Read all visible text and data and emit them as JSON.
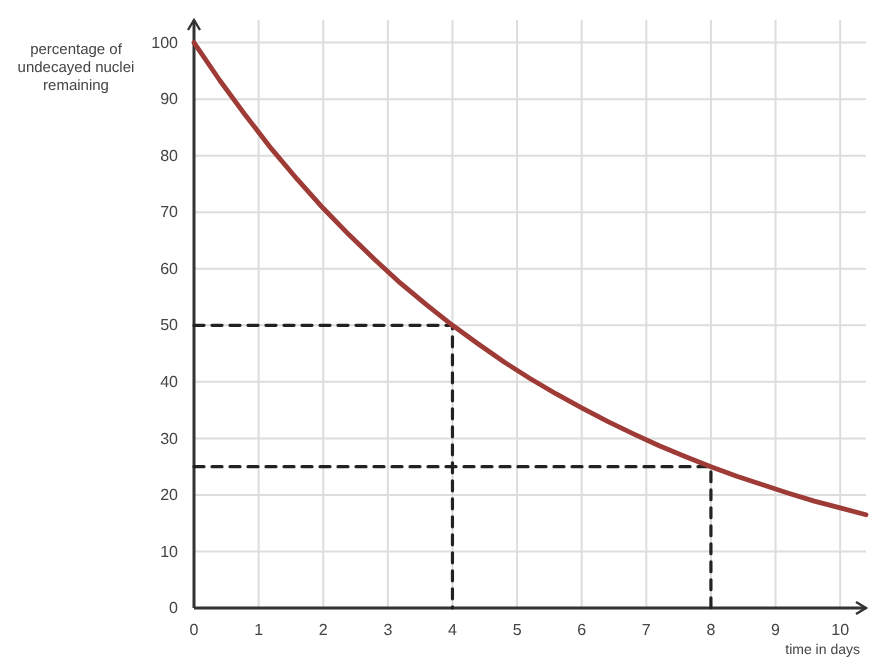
{
  "chart_data": {
    "type": "line",
    "xlabel": "time in days",
    "ylabel": "percentage of undecayed nuclei remaining",
    "xlim": [
      0,
      10.4
    ],
    "ylim": [
      0,
      104
    ],
    "xticks": [
      0,
      1,
      2,
      3,
      4,
      5,
      6,
      7,
      8,
      9,
      10
    ],
    "yticks": [
      0,
      10,
      20,
      30,
      40,
      50,
      60,
      70,
      80,
      90,
      100
    ],
    "grid": true,
    "marker": "none",
    "series": [
      {
        "color": "#9e3b36",
        "line_style": "solid",
        "x": [
          0,
          0.4,
          0.8,
          1.2,
          1.6,
          2,
          2.4,
          2.8,
          3.2,
          3.6,
          4,
          4.4,
          4.8,
          5.2,
          5.6,
          6,
          6.4,
          6.8,
          7.2,
          7.6,
          8,
          8.4,
          8.8,
          9.2,
          9.6,
          10,
          10.4
        ],
        "values": [
          100,
          93.3,
          87.1,
          81.2,
          75.8,
          70.7,
          66.0,
          61.6,
          57.4,
          53.6,
          50,
          46.7,
          43.5,
          40.6,
          37.9,
          35.4,
          33.0,
          30.8,
          28.7,
          26.8,
          25,
          23.3,
          21.8,
          20.3,
          18.9,
          17.7,
          16.5
        ]
      },
      {
        "color": "#222222",
        "line_style": "dashed",
        "x": [
          0,
          4,
          4
        ],
        "values": [
          50,
          50,
          0
        ]
      },
      {
        "color": "#222222",
        "line_style": "dashed",
        "x": [
          0,
          8,
          8
        ],
        "values": [
          25,
          25,
          0
        ]
      }
    ]
  }
}
